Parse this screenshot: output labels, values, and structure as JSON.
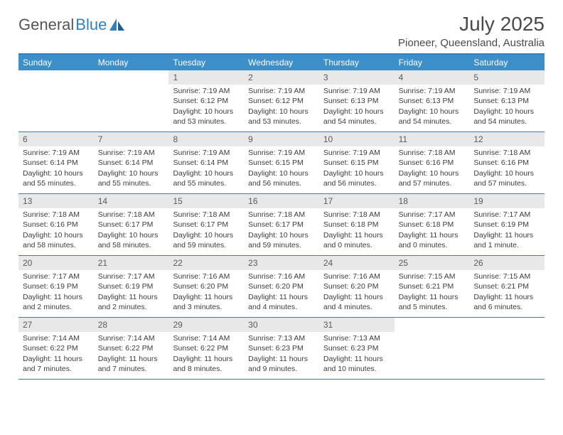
{
  "brand": {
    "part1": "General",
    "part2": "Blue"
  },
  "title": "July 2025",
  "location": "Pioneer, Queensland, Australia",
  "colors": {
    "brand_blue": "#2f7fc1",
    "header_bg": "#3d8fc9",
    "daynum_bg": "#e8e8e8",
    "text": "#3c3c3c"
  },
  "day_headers": [
    "Sunday",
    "Monday",
    "Tuesday",
    "Wednesday",
    "Thursday",
    "Friday",
    "Saturday"
  ],
  "weeks": [
    [
      {
        "n": "",
        "sr": "",
        "ss": "",
        "dl": ""
      },
      {
        "n": "",
        "sr": "",
        "ss": "",
        "dl": ""
      },
      {
        "n": "1",
        "sr": "Sunrise: 7:19 AM",
        "ss": "Sunset: 6:12 PM",
        "dl": "Daylight: 10 hours and 53 minutes."
      },
      {
        "n": "2",
        "sr": "Sunrise: 7:19 AM",
        "ss": "Sunset: 6:12 PM",
        "dl": "Daylight: 10 hours and 53 minutes."
      },
      {
        "n": "3",
        "sr": "Sunrise: 7:19 AM",
        "ss": "Sunset: 6:13 PM",
        "dl": "Daylight: 10 hours and 54 minutes."
      },
      {
        "n": "4",
        "sr": "Sunrise: 7:19 AM",
        "ss": "Sunset: 6:13 PM",
        "dl": "Daylight: 10 hours and 54 minutes."
      },
      {
        "n": "5",
        "sr": "Sunrise: 7:19 AM",
        "ss": "Sunset: 6:13 PM",
        "dl": "Daylight: 10 hours and 54 minutes."
      }
    ],
    [
      {
        "n": "6",
        "sr": "Sunrise: 7:19 AM",
        "ss": "Sunset: 6:14 PM",
        "dl": "Daylight: 10 hours and 55 minutes."
      },
      {
        "n": "7",
        "sr": "Sunrise: 7:19 AM",
        "ss": "Sunset: 6:14 PM",
        "dl": "Daylight: 10 hours and 55 minutes."
      },
      {
        "n": "8",
        "sr": "Sunrise: 7:19 AM",
        "ss": "Sunset: 6:14 PM",
        "dl": "Daylight: 10 hours and 55 minutes."
      },
      {
        "n": "9",
        "sr": "Sunrise: 7:19 AM",
        "ss": "Sunset: 6:15 PM",
        "dl": "Daylight: 10 hours and 56 minutes."
      },
      {
        "n": "10",
        "sr": "Sunrise: 7:19 AM",
        "ss": "Sunset: 6:15 PM",
        "dl": "Daylight: 10 hours and 56 minutes."
      },
      {
        "n": "11",
        "sr": "Sunrise: 7:18 AM",
        "ss": "Sunset: 6:16 PM",
        "dl": "Daylight: 10 hours and 57 minutes."
      },
      {
        "n": "12",
        "sr": "Sunrise: 7:18 AM",
        "ss": "Sunset: 6:16 PM",
        "dl": "Daylight: 10 hours and 57 minutes."
      }
    ],
    [
      {
        "n": "13",
        "sr": "Sunrise: 7:18 AM",
        "ss": "Sunset: 6:16 PM",
        "dl": "Daylight: 10 hours and 58 minutes."
      },
      {
        "n": "14",
        "sr": "Sunrise: 7:18 AM",
        "ss": "Sunset: 6:17 PM",
        "dl": "Daylight: 10 hours and 58 minutes."
      },
      {
        "n": "15",
        "sr": "Sunrise: 7:18 AM",
        "ss": "Sunset: 6:17 PM",
        "dl": "Daylight: 10 hours and 59 minutes."
      },
      {
        "n": "16",
        "sr": "Sunrise: 7:18 AM",
        "ss": "Sunset: 6:17 PM",
        "dl": "Daylight: 10 hours and 59 minutes."
      },
      {
        "n": "17",
        "sr": "Sunrise: 7:18 AM",
        "ss": "Sunset: 6:18 PM",
        "dl": "Daylight: 11 hours and 0 minutes."
      },
      {
        "n": "18",
        "sr": "Sunrise: 7:17 AM",
        "ss": "Sunset: 6:18 PM",
        "dl": "Daylight: 11 hours and 0 minutes."
      },
      {
        "n": "19",
        "sr": "Sunrise: 7:17 AM",
        "ss": "Sunset: 6:19 PM",
        "dl": "Daylight: 11 hours and 1 minute."
      }
    ],
    [
      {
        "n": "20",
        "sr": "Sunrise: 7:17 AM",
        "ss": "Sunset: 6:19 PM",
        "dl": "Daylight: 11 hours and 2 minutes."
      },
      {
        "n": "21",
        "sr": "Sunrise: 7:17 AM",
        "ss": "Sunset: 6:19 PM",
        "dl": "Daylight: 11 hours and 2 minutes."
      },
      {
        "n": "22",
        "sr": "Sunrise: 7:16 AM",
        "ss": "Sunset: 6:20 PM",
        "dl": "Daylight: 11 hours and 3 minutes."
      },
      {
        "n": "23",
        "sr": "Sunrise: 7:16 AM",
        "ss": "Sunset: 6:20 PM",
        "dl": "Daylight: 11 hours and 4 minutes."
      },
      {
        "n": "24",
        "sr": "Sunrise: 7:16 AM",
        "ss": "Sunset: 6:20 PM",
        "dl": "Daylight: 11 hours and 4 minutes."
      },
      {
        "n": "25",
        "sr": "Sunrise: 7:15 AM",
        "ss": "Sunset: 6:21 PM",
        "dl": "Daylight: 11 hours and 5 minutes."
      },
      {
        "n": "26",
        "sr": "Sunrise: 7:15 AM",
        "ss": "Sunset: 6:21 PM",
        "dl": "Daylight: 11 hours and 6 minutes."
      }
    ],
    [
      {
        "n": "27",
        "sr": "Sunrise: 7:14 AM",
        "ss": "Sunset: 6:22 PM",
        "dl": "Daylight: 11 hours and 7 minutes."
      },
      {
        "n": "28",
        "sr": "Sunrise: 7:14 AM",
        "ss": "Sunset: 6:22 PM",
        "dl": "Daylight: 11 hours and 7 minutes."
      },
      {
        "n": "29",
        "sr": "Sunrise: 7:14 AM",
        "ss": "Sunset: 6:22 PM",
        "dl": "Daylight: 11 hours and 8 minutes."
      },
      {
        "n": "30",
        "sr": "Sunrise: 7:13 AM",
        "ss": "Sunset: 6:23 PM",
        "dl": "Daylight: 11 hours and 9 minutes."
      },
      {
        "n": "31",
        "sr": "Sunrise: 7:13 AM",
        "ss": "Sunset: 6:23 PM",
        "dl": "Daylight: 11 hours and 10 minutes."
      },
      {
        "n": "",
        "sr": "",
        "ss": "",
        "dl": ""
      },
      {
        "n": "",
        "sr": "",
        "ss": "",
        "dl": ""
      }
    ]
  ]
}
